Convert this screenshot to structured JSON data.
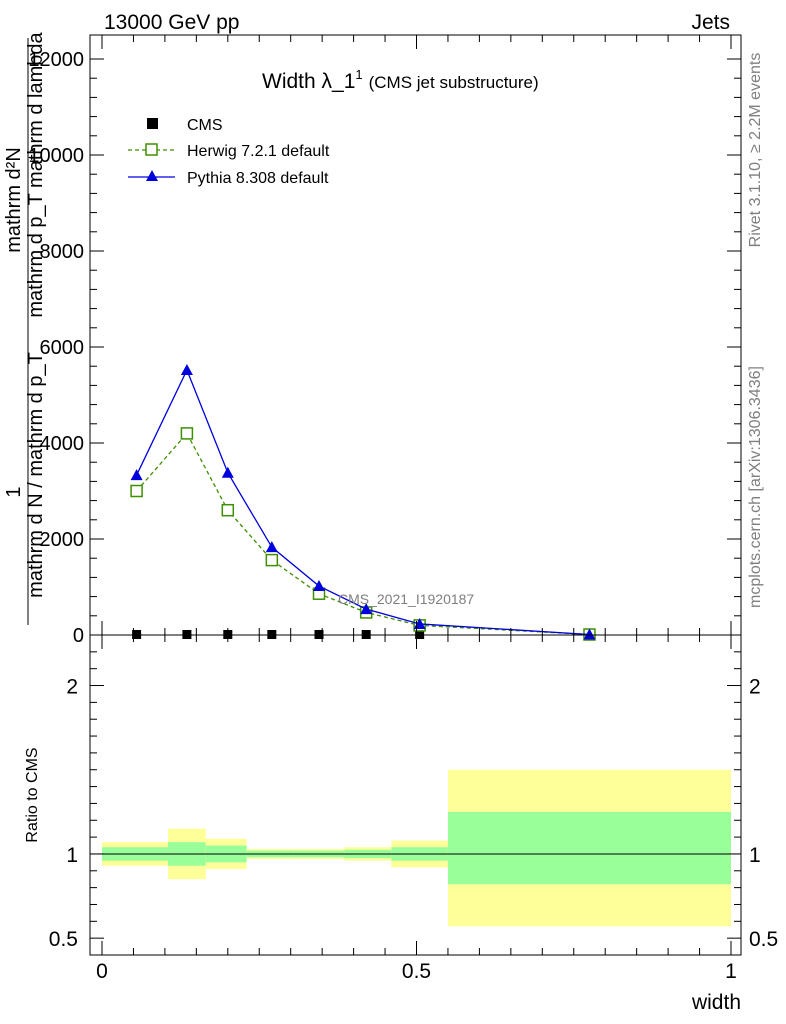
{
  "header": {
    "energy_label": "13000 GeV pp",
    "category_label": "Jets"
  },
  "side_labels": {
    "rivet": "Rivet 3.1.10, ≥ 2.2M events",
    "mcplots": "mcplots.cern.ch [arXiv:1306.3436]"
  },
  "watermark": "CMS_2021_I1920187",
  "colors": {
    "cms": "#000000",
    "herwig": "#3f8f00",
    "pythia": "#0000dd",
    "band_inner": "#99ff99",
    "band_outer": "#ffff99"
  },
  "chart_data": [
    {
      "type": "line",
      "panel": "main",
      "title_main": "Width λ_1",
      "title_sup": "1",
      "title_suffix": "(CMS jet substructure)",
      "ylabel_upper": "mathrm d²N",
      "ylabel_upper_sub": "mathrm d p_T mathrm d lambda",
      "ylabel_numerator": "1",
      "ylabel_lower": "mathrm d N / mathrm d p_T",
      "ylim": [
        0,
        12500
      ],
      "xlim": [
        0,
        1
      ],
      "yticks": [
        0,
        2000,
        4000,
        6000,
        8000,
        10000,
        12000
      ],
      "ytick_labels": [
        "0",
        "2000",
        "4000",
        "6000",
        "8000",
        "10000",
        "12000"
      ],
      "legend_position": "top-left",
      "series": [
        {
          "name": "CMS",
          "marker": "square",
          "x": [
            0.055,
            0.135,
            0.2,
            0.27,
            0.345,
            0.42,
            0.505,
            0.775
          ],
          "y": [
            0,
            0,
            0,
            0,
            0,
            0,
            0,
            0
          ]
        },
        {
          "name": "Herwig 7.2.1 default",
          "marker": "open-square",
          "x": [
            0.055,
            0.135,
            0.2,
            0.27,
            0.345,
            0.42,
            0.505,
            0.775
          ],
          "y": [
            3000,
            4200,
            2600,
            1560,
            860,
            470,
            200,
            10
          ]
        },
        {
          "name": "Pythia 8.308 default",
          "marker": "triangle",
          "x": [
            0.055,
            0.135,
            0.2,
            0.27,
            0.345,
            0.42,
            0.505,
            0.775
          ],
          "y": [
            3330,
            5520,
            3380,
            1830,
            1020,
            540,
            230,
            10
          ]
        }
      ]
    },
    {
      "type": "area",
      "panel": "ratio",
      "ylabel": "Ratio to CMS",
      "xlabel": "width",
      "ylim": [
        0.4,
        2.3
      ],
      "xlim": [
        0,
        1
      ],
      "yticks": [
        0.5,
        1,
        2
      ],
      "ytick_labels": [
        "0.5",
        "1",
        "2"
      ],
      "xticks": [
        0,
        0.5,
        1
      ],
      "xtick_labels": [
        "0",
        "0.5",
        "1"
      ],
      "bins": [
        {
          "x0": 0.0,
          "x1": 0.105,
          "inner": [
            0.96,
            1.04
          ],
          "outer": [
            0.93,
            1.07
          ]
        },
        {
          "x0": 0.105,
          "x1": 0.165,
          "inner": [
            0.93,
            1.07
          ],
          "outer": [
            0.85,
            1.15
          ]
        },
        {
          "x0": 0.165,
          "x1": 0.23,
          "inner": [
            0.95,
            1.05
          ],
          "outer": [
            0.91,
            1.09
          ]
        },
        {
          "x0": 0.23,
          "x1": 0.305,
          "inner": [
            0.98,
            1.02
          ],
          "outer": [
            0.97,
            1.03
          ]
        },
        {
          "x0": 0.305,
          "x1": 0.385,
          "inner": [
            0.98,
            1.02
          ],
          "outer": [
            0.97,
            1.03
          ]
        },
        {
          "x0": 0.385,
          "x1": 0.46,
          "inner": [
            0.975,
            1.025
          ],
          "outer": [
            0.96,
            1.04
          ]
        },
        {
          "x0": 0.46,
          "x1": 0.55,
          "inner": [
            0.96,
            1.04
          ],
          "outer": [
            0.92,
            1.08
          ]
        },
        {
          "x0": 0.55,
          "x1": 1.0,
          "inner": [
            0.82,
            1.25
          ],
          "outer": [
            0.57,
            1.5
          ]
        }
      ],
      "reference": 1.0
    }
  ]
}
